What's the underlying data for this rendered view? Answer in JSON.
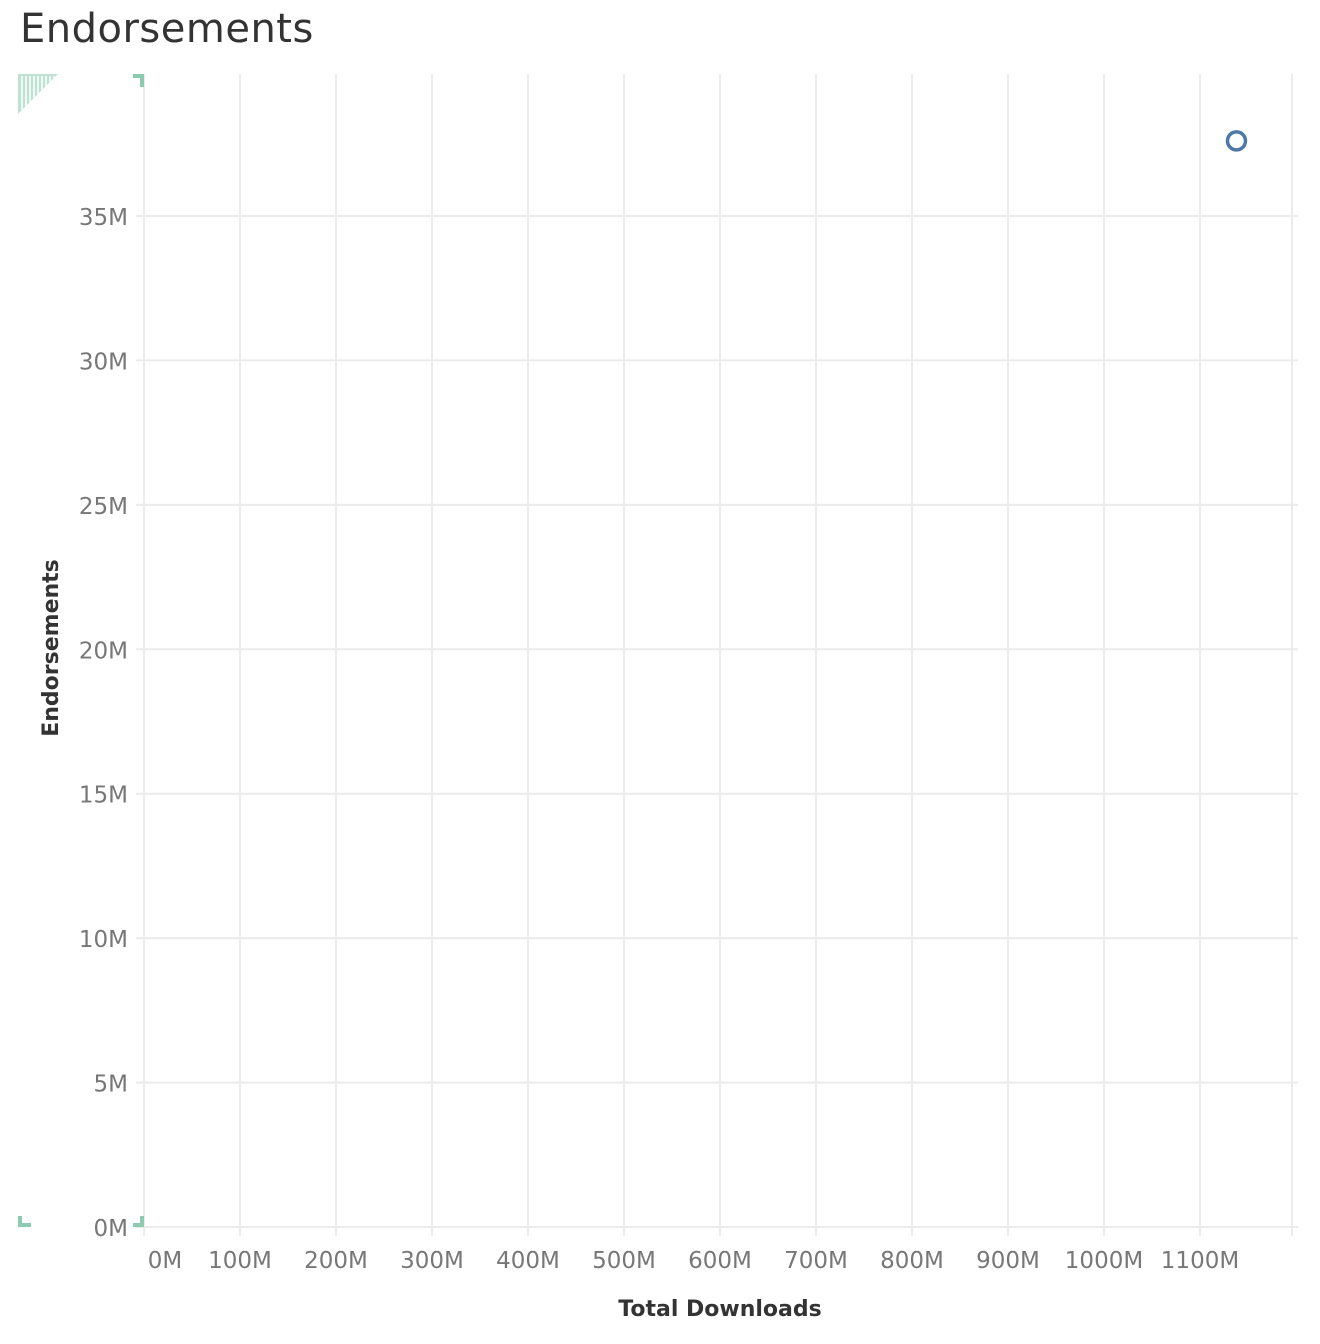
{
  "title": "Endorsements",
  "accent_color": "#8ccbb0",
  "mark_color": "#4e79a7",
  "chart_data": {
    "type": "scatter",
    "title": "Endorsements",
    "xlabel": "Total Downloads",
    "ylabel": "Endorsements",
    "xlim": [
      0,
      1200
    ],
    "ylim": [
      -0.5,
      39.5
    ],
    "x_unit": "M",
    "y_unit": "M",
    "x_ticks": [
      "0M",
      "100M",
      "200M",
      "300M",
      "400M",
      "500M",
      "600M",
      "700M",
      "800M",
      "900M",
      "1000M",
      "1100M"
    ],
    "x_tick_values": [
      0,
      100,
      200,
      300,
      400,
      500,
      600,
      700,
      800,
      900,
      1000,
      1100
    ],
    "y_ticks": [
      "0M",
      "5M",
      "10M",
      "15M",
      "20M",
      "25M",
      "30M",
      "35M"
    ],
    "y_tick_values": [
      0,
      5,
      10,
      15,
      20,
      25,
      30,
      35
    ],
    "grid": true,
    "marker": "open-circle",
    "points": [
      {
        "x": 1138,
        "y": 37.6
      }
    ]
  }
}
